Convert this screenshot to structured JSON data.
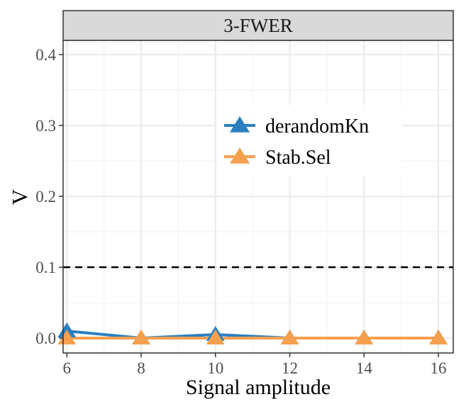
{
  "chart_data": {
    "type": "line",
    "facet_title": "3-FWER",
    "xlabel": "Signal amplitude",
    "ylabel": "V",
    "x": [
      6,
      8,
      10,
      12,
      14,
      16
    ],
    "x_ticks": [
      "6",
      "8",
      "10",
      "12",
      "14",
      "16"
    ],
    "y_ticks": [
      "0.0",
      "0.1",
      "0.2",
      "0.3",
      "0.4"
    ],
    "x_range": [
      5.9,
      16.4
    ],
    "y_range": [
      -0.021,
      0.42
    ],
    "reference_line": {
      "y": 0.1,
      "style": "dashed",
      "color": "#000000"
    },
    "legend_position": "center",
    "series": [
      {
        "name": "derandomKn",
        "color": "#2a7fc0",
        "marker": "triangle",
        "values": [
          0.01,
          0.0,
          0.005,
          0.0,
          0.0,
          0.0
        ]
      },
      {
        "name": "Stab.Sel",
        "color": "#f5a04f",
        "marker": "triangle",
        "values": [
          0.0,
          0.0,
          0.0,
          0.0,
          0.0,
          0.0
        ]
      }
    ]
  }
}
